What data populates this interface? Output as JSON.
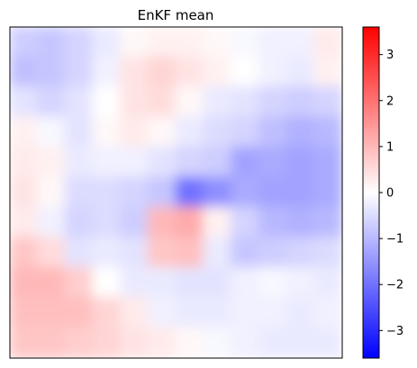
{
  "chart_data": {
    "type": "heatmap",
    "title": "EnKF mean",
    "xlabel": "",
    "ylabel": "",
    "colormap": "bwr",
    "colormap_colors": [
      "#0000ff",
      "#ffffff",
      "#ff0000"
    ],
    "vmin": -3.6,
    "vmax": 3.6,
    "colorbar_ticks": [
      -3,
      -2,
      -1,
      0,
      1,
      2,
      3
    ],
    "colorbar_tick_labels": [
      "−3",
      "−2",
      "−1",
      "0",
      "1",
      "2",
      "3"
    ],
    "axes_ticks_shown": false,
    "grid": false,
    "approx_field_grid": {
      "note": "coarse estimate of field values, rows top-to-bottom, cols left-to-right",
      "rows": [
        [
          -0.7,
          -0.8,
          -0.6,
          -0.3,
          0.1,
          0.2,
          0.2,
          0.1,
          -0.1,
          -0.2,
          -0.2,
          0.3
        ],
        [
          -0.9,
          -0.8,
          -0.6,
          -0.2,
          0.4,
          0.6,
          0.4,
          0.2,
          0.0,
          -0.2,
          -0.3,
          0.2
        ],
        [
          -0.4,
          -0.6,
          -0.4,
          0.0,
          0.4,
          0.5,
          0.1,
          -0.3,
          -0.4,
          -0.6,
          -0.7,
          -0.6
        ],
        [
          0.2,
          -0.1,
          -0.4,
          0.1,
          0.3,
          0.1,
          -0.3,
          -0.5,
          -0.6,
          -0.9,
          -1.1,
          -1.0
        ],
        [
          0.3,
          0.2,
          -0.3,
          -0.2,
          -0.2,
          -0.4,
          -0.6,
          -0.7,
          -1.3,
          -1.2,
          -1.3,
          -1.2
        ],
        [
          0.4,
          0.1,
          -0.5,
          -0.5,
          -0.6,
          -0.8,
          -2.0,
          -1.6,
          -1.2,
          -1.3,
          -1.3,
          -1.2
        ],
        [
          0.3,
          -0.2,
          -0.6,
          -0.5,
          -0.7,
          1.0,
          1.2,
          0.2,
          -0.6,
          -1.0,
          -1.1,
          -1.0
        ],
        [
          0.8,
          0.5,
          -0.4,
          -0.3,
          -0.4,
          0.8,
          0.9,
          -0.3,
          -0.8,
          -0.7,
          -0.6,
          -0.5
        ],
        [
          1.0,
          1.0,
          0.7,
          0.0,
          -0.3,
          -0.3,
          -0.4,
          -0.4,
          -0.2,
          -0.1,
          -0.2,
          -0.3
        ],
        [
          0.9,
          0.9,
          0.9,
          0.6,
          0.3,
          -0.2,
          -0.3,
          -0.3,
          -0.2,
          -0.2,
          -0.3,
          -0.2
        ],
        [
          0.8,
          0.8,
          0.7,
          0.6,
          0.4,
          0.3,
          0.1,
          -0.1,
          -0.2,
          -0.3,
          -0.3,
          -0.3
        ]
      ]
    }
  }
}
